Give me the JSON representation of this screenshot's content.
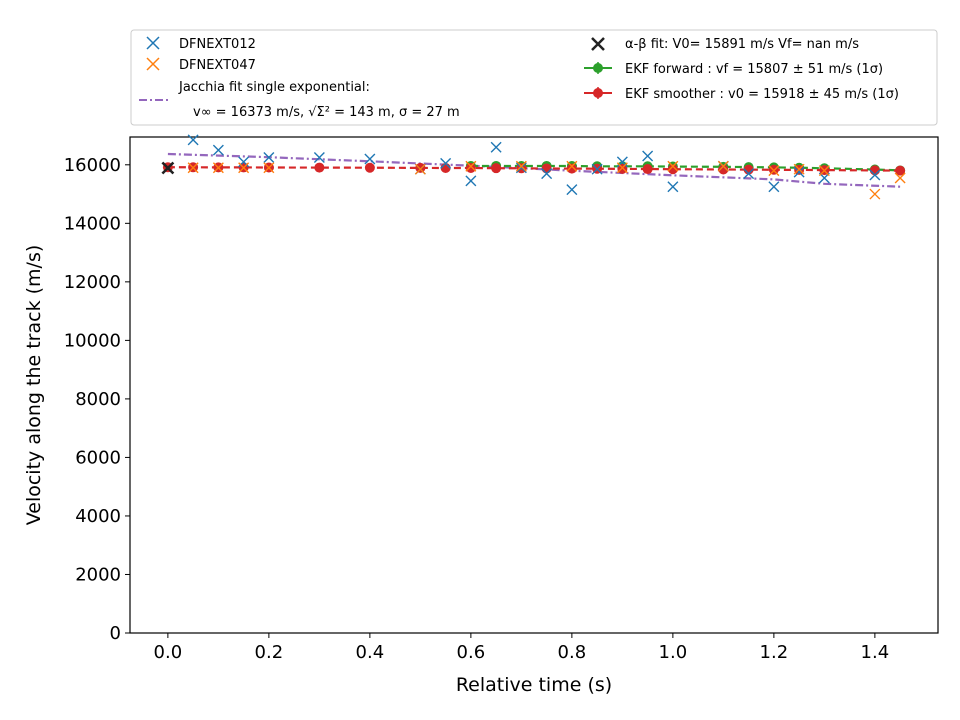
{
  "chart_data": {
    "type": "scatter",
    "xlabel": "Relative time (s)",
    "ylabel": "Velocity along the track (m/s)",
    "xlim": [
      -0.075,
      1.525
    ],
    "ylim": [
      0,
      16950
    ],
    "x_ticks": [
      0.0,
      0.2,
      0.4,
      0.6,
      0.8,
      1.0,
      1.2,
      1.4
    ],
    "x_tick_labels": [
      "0.0",
      "0.2",
      "0.4",
      "0.6",
      "0.8",
      "1.0",
      "1.2",
      "1.4"
    ],
    "y_ticks": [
      0,
      2000,
      4000,
      6000,
      8000,
      10000,
      12000,
      14000,
      16000
    ],
    "y_tick_labels": [
      "0",
      "2000",
      "4000",
      "6000",
      "8000",
      "10000",
      "12000",
      "14000",
      "16000"
    ],
    "grid": false,
    "legend_position": "above plot",
    "series": [
      {
        "name": "DFNEXT012",
        "kind": "scatter-x",
        "color": "#1f77b4",
        "x": [
          0.0,
          0.05,
          0.1,
          0.15,
          0.2,
          0.3,
          0.4,
          0.5,
          0.55,
          0.6,
          0.65,
          0.7,
          0.75,
          0.8,
          0.85,
          0.9,
          0.95,
          1.0,
          1.1,
          1.15,
          1.2,
          1.25,
          1.3,
          1.4
        ],
        "y": [
          15900,
          16850,
          16500,
          16100,
          16250,
          16250,
          16200,
          15850,
          16050,
          15450,
          16600,
          15900,
          15700,
          15150,
          15850,
          16100,
          16300,
          15250,
          15950,
          15700,
          15250,
          15750,
          15550,
          15650
        ]
      },
      {
        "name": "DFNEXT047",
        "kind": "scatter-x",
        "color": "#ff7f0e",
        "x": [
          0.05,
          0.1,
          0.15,
          0.2,
          0.5,
          0.6,
          0.7,
          0.8,
          0.9,
          1.0,
          1.1,
          1.2,
          1.25,
          1.3,
          1.4,
          1.45
        ],
        "y": [
          15900,
          15900,
          15900,
          15900,
          15850,
          15950,
          15950,
          15950,
          15900,
          15950,
          15950,
          15800,
          15850,
          15800,
          15000,
          15550
        ]
      },
      {
        "name": "Jacchia fit single exponential:",
        "name_line2": "v∞ = 16373 m/s, √Σ² = 143 m, σ = 27 m",
        "kind": "line-dashdot",
        "color": "#9467bd",
        "x": [
          0.0,
          0.2,
          0.4,
          0.6,
          0.8,
          1.0,
          1.2,
          1.3,
          1.45
        ],
        "y": [
          16370,
          16260,
          16120,
          15970,
          15800,
          15640,
          15500,
          15350,
          15250
        ]
      },
      {
        "name": "α-β fit: V0= 15891 m/s   Vf= nan m/s",
        "kind": "scatter-bigx",
        "color": "#222222",
        "x": [
          0.0
        ],
        "y": [
          15891
        ]
      },
      {
        "name": "EKF forward : vf =  15807 ± 51 m/s (1σ)",
        "kind": "line-dashed-markers",
        "color": "#2ca02c",
        "x": [
          0.6,
          0.65,
          0.7,
          0.75,
          0.8,
          0.85,
          0.9,
          0.95,
          1.0,
          1.1,
          1.15,
          1.2,
          1.25,
          1.3,
          1.4,
          1.45
        ],
        "y": [
          15960,
          15960,
          15960,
          15960,
          15960,
          15950,
          15950,
          15950,
          15940,
          15930,
          15920,
          15910,
          15900,
          15880,
          15840,
          15807
        ]
      },
      {
        "name": "EKF smoother : v0 =  15918 ± 45 m/s (1σ)",
        "kind": "line-dashed-markers",
        "color": "#d62728",
        "x": [
          0.0,
          0.05,
          0.1,
          0.15,
          0.2,
          0.3,
          0.4,
          0.5,
          0.55,
          0.6,
          0.65,
          0.7,
          0.75,
          0.8,
          0.85,
          0.9,
          0.95,
          1.0,
          1.1,
          1.15,
          1.2,
          1.25,
          1.3,
          1.4,
          1.45
        ],
        "y": [
          15918,
          15915,
          15912,
          15910,
          15908,
          15905,
          15900,
          15895,
          15892,
          15890,
          15885,
          15880,
          15875,
          15870,
          15865,
          15860,
          15855,
          15850,
          15840,
          15835,
          15830,
          15825,
          15820,
          15810,
          15800
        ]
      }
    ]
  }
}
